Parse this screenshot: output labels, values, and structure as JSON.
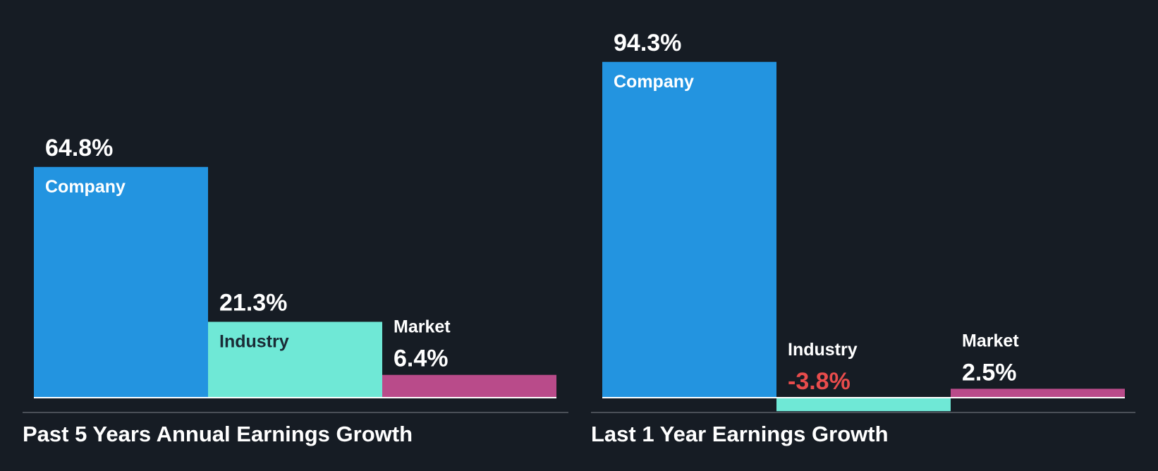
{
  "colors": {
    "background": "#161c24",
    "company": "#2394e0",
    "industry": "#6fe8d6",
    "market": "#b94b8a",
    "label_on_dark": "#ffffff",
    "label_on_light": "#1a2b36",
    "negative": "#e84c4c",
    "baseline": "#ffffff",
    "divider": "#4a4f57"
  },
  "chart_data": [
    {
      "type": "bar",
      "title": "Past 5 Years Annual Earnings Growth",
      "categories": [
        "Company",
        "Industry",
        "Market"
      ],
      "values": [
        64.8,
        21.3,
        6.4
      ],
      "value_labels": [
        "64.8%",
        "21.3%",
        "6.4%"
      ],
      "unit": "%",
      "grid": false,
      "legend": "none"
    },
    {
      "type": "bar",
      "title": "Last 1 Year Earnings Growth",
      "categories": [
        "Company",
        "Industry",
        "Market"
      ],
      "values": [
        94.3,
        -3.8,
        2.5
      ],
      "value_labels": [
        "94.3%",
        "-3.8%",
        "2.5%"
      ],
      "unit": "%",
      "grid": false,
      "legend": "none"
    }
  ]
}
